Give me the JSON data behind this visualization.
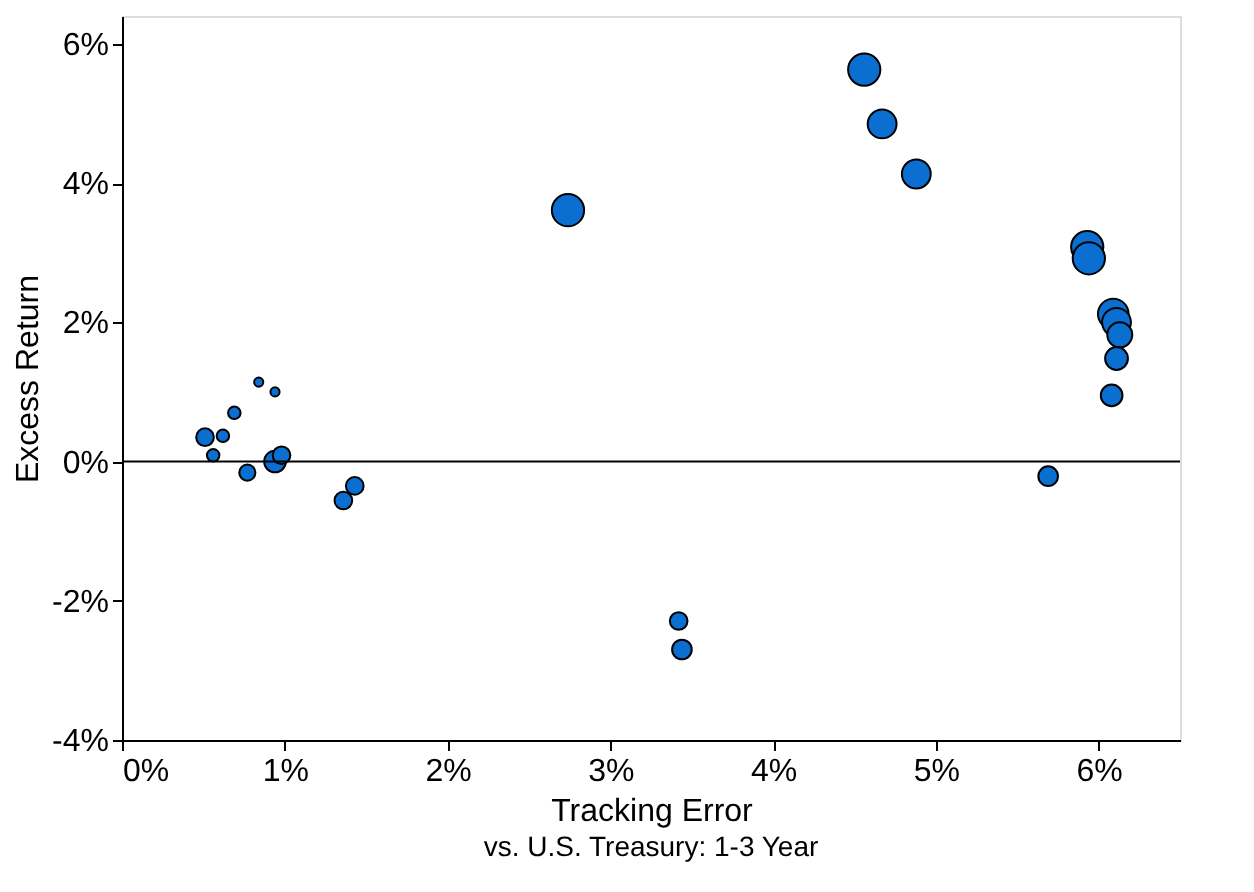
{
  "chart_data": {
    "type": "bubble",
    "xlabel": "Tracking Error",
    "ylabel": "Excess Return",
    "x": [
      0.51,
      0.56,
      0.62,
      0.69,
      0.84,
      0.94,
      0.77,
      0.94,
      0.98,
      1.43,
      1.36,
      2.74,
      4.56,
      4.67,
      4.88,
      5.93,
      5.94,
      6.09,
      6.11,
      6.13,
      6.11,
      6.08,
      5.69,
      3.42,
      3.44
    ],
    "series": [
      {
        "color": "#0a6fd0",
        "values": [
          0.35,
          0.09,
          0.37,
          0.7,
          1.14,
          1.0,
          -0.16,
          0.0,
          0.09,
          -0.35,
          -0.56,
          3.61,
          5.63,
          4.85,
          4.13,
          3.08,
          2.92,
          2.12,
          2.0,
          1.82,
          1.48,
          0.95,
          -0.21,
          -2.29,
          -2.7
        ],
        "sizes": [
          0.3,
          0.15,
          0.15,
          0.15,
          0.08,
          0.08,
          0.25,
          0.45,
          0.3,
          0.3,
          0.3,
          1,
          1,
          0.8,
          0.8,
          1,
          1,
          0.9,
          0.8,
          0.6,
          0.5,
          0.45,
          0.37,
          0.3,
          0.37
        ]
      }
    ],
    "xlim": [
      0,
      6.5
    ],
    "ylim": [
      -4,
      6.4
    ],
    "xticks": [
      {
        "value": 0,
        "label": "0%"
      },
      {
        "value": 1,
        "label": "1%"
      },
      {
        "value": 2,
        "label": "2%"
      },
      {
        "value": 3,
        "label": "3%"
      },
      {
        "value": 4,
        "label": "4%"
      },
      {
        "value": 5,
        "label": "5%"
      },
      {
        "value": 6,
        "label": "6%"
      }
    ],
    "yticks": [
      {
        "value": -4,
        "label": "-4%"
      },
      {
        "value": -2,
        "label": "-2%"
      },
      {
        "value": 0,
        "label": "0%"
      },
      {
        "value": 2,
        "label": "2%"
      },
      {
        "value": 4,
        "label": "4%"
      },
      {
        "value": 6,
        "label": "6%"
      }
    ],
    "ref_lines": [
      {
        "axis": "y",
        "value": 0,
        "color": "#000000"
      }
    ],
    "annotations": [
      "vs. U.S. Treasury: 1-3 Year"
    ],
    "grid": false
  }
}
